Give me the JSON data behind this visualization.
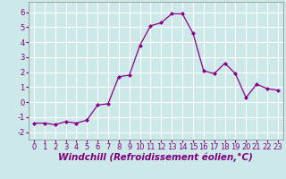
{
  "x": [
    0,
    1,
    2,
    3,
    4,
    5,
    6,
    7,
    8,
    9,
    10,
    11,
    12,
    13,
    14,
    15,
    16,
    17,
    18,
    19,
    20,
    21,
    22,
    23
  ],
  "y": [
    -1.4,
    -1.4,
    -1.5,
    -1.3,
    -1.4,
    -1.2,
    -0.2,
    -0.1,
    1.7,
    1.8,
    3.8,
    5.1,
    5.3,
    5.9,
    5.9,
    4.6,
    2.1,
    1.9,
    2.6,
    1.9,
    0.3,
    1.2,
    0.9,
    0.8
  ],
  "xlabel": "Windchill (Refroidissement éolien,°C)",
  "ylabel": "",
  "xlim": [
    -0.5,
    23.5
  ],
  "ylim": [
    -2.5,
    6.7
  ],
  "xticks": [
    0,
    1,
    2,
    3,
    4,
    5,
    6,
    7,
    8,
    9,
    10,
    11,
    12,
    13,
    14,
    15,
    16,
    17,
    18,
    19,
    20,
    21,
    22,
    23
  ],
  "yticks": [
    -2,
    -1,
    0,
    1,
    2,
    3,
    4,
    5,
    6
  ],
  "line_color": "#8b008b",
  "marker": "D",
  "marker_size": 2.0,
  "bg_color": "#cce8e8",
  "grid_color": "#ffffff",
  "xlabel_fontsize": 7.5,
  "tick_fontsize": 6.0,
  "xlabel_color": "#800080"
}
